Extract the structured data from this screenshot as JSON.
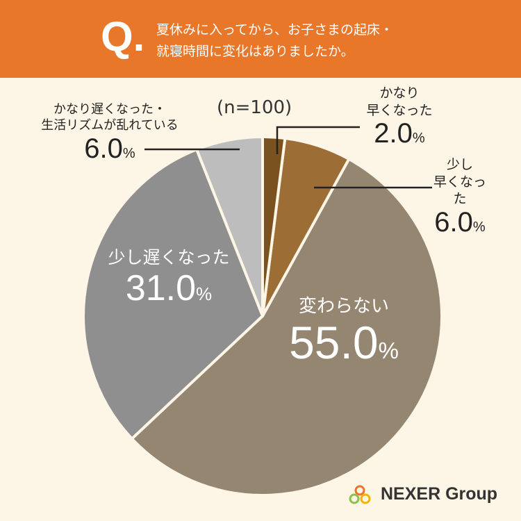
{
  "chart_data": {
    "type": "pie",
    "title": "夏休みに入ってから、お子さまの起床・\n就寝時間に変化はありましたか。",
    "title_prefix": "Q.",
    "annotation": "(n=100)",
    "categories": [
      "かなり\n早くなった",
      "少し\n早くなった",
      "変わらない",
      "少し遅くなった",
      "かなり遅くなった・\n生活リズムが乱れている"
    ],
    "values": [
      2,
      6,
      55,
      31,
      6
    ],
    "value_labels": [
      "2.0",
      "6.0",
      "55.0",
      "31.0",
      "6.0"
    ],
    "value_suffix": "%",
    "colors": [
      "#7a5220",
      "#9c6d34",
      "#958672",
      "#8f8f8f",
      "#bdbdbd"
    ],
    "brand": "NEXER Group"
  }
}
